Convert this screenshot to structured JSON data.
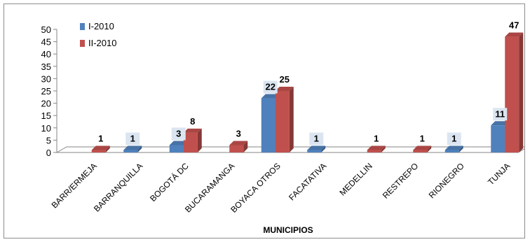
{
  "chart_data": {
    "type": "bar",
    "xlabel": "MUNICIPIOS",
    "ylabel": "",
    "ylim": [
      0,
      50
    ],
    "yticks": [
      0,
      5,
      10,
      15,
      20,
      25,
      30,
      35,
      40,
      45,
      50
    ],
    "grid": false,
    "legend_position": "top-left",
    "categories": [
      "BARR/ERMEJA",
      "BARRANQUILLA",
      "BOGOTÁ DC",
      "BUCARAMANGA",
      "BOYACA OTROS",
      "FACATATIVA",
      "MEDELLIN",
      "RESTREPO",
      "RIONEGRO",
      "TUNJA"
    ],
    "series": [
      {
        "name": "I-2010",
        "color": "#4f81bd",
        "values": [
          null,
          1,
          3,
          null,
          22,
          1,
          null,
          null,
          1,
          11
        ]
      },
      {
        "name": "II-2010",
        "color": "#c0504d",
        "values": [
          1,
          null,
          8,
          3,
          25,
          null,
          1,
          1,
          null,
          47
        ]
      }
    ]
  }
}
